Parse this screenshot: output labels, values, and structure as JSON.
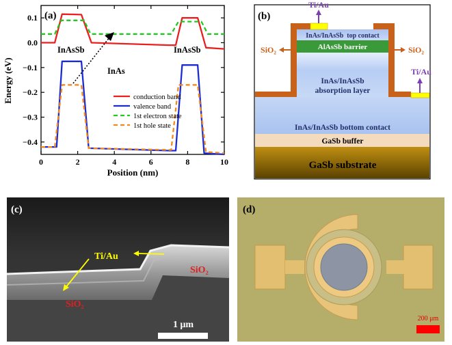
{
  "panel_a": {
    "label": "(a)",
    "text_inassb_left": "InAsSb",
    "text_inassb_right": "InAsSb",
    "text_inas": "InAs",
    "legend": [
      "conduction band",
      "valence band",
      "1st electron state",
      "1st hole state"
    ],
    "colors": {
      "cb": "#e8201e",
      "vb": "#1c2bd4",
      "e1": "#22c722",
      "h1": "#f08a1e"
    }
  },
  "panel_b": {
    "label": "(b)",
    "top_contact_metal": "Ti/Au",
    "side_contact_metal": "Ti/Au",
    "sio2_left": "SiO₂",
    "sio2_right": "SiO₂",
    "layers": {
      "top_contact": "InAs/InAsSb  top contact",
      "barrier": "AlAsSb barrier",
      "absorption_1": "InAs/InAsSb",
      "absorption_2": "absorption layer",
      "bottom_contact": "InAs/InAsSb bottom contact",
      "buffer": "GaSb buffer",
      "substrate": "GaSb substrate"
    }
  },
  "panel_c": {
    "label": "(c)",
    "tiau": "Ti/Au",
    "sio2_right": "SiO₂",
    "sio2_left": "SiO₂",
    "scale": "1 μm"
  },
  "panel_d": {
    "label": "(d)",
    "scale": "200 μm"
  },
  "chart_data": {
    "type": "line",
    "title": "",
    "xlabel": "Position (nm)",
    "ylabel": "Energy (eV)",
    "xlim": [
      0,
      10
    ],
    "ylim": [
      -0.45,
      0.15
    ],
    "xticks": [
      0,
      2,
      4,
      6,
      8,
      10
    ],
    "yticks": [
      0.1,
      0.0,
      -0.1,
      -0.2,
      -0.3,
      -0.4
    ],
    "ytick_labels": [
      "0.1",
      "0.0",
      "−0.1",
      "−0.2",
      "−0.3",
      "−0.4"
    ],
    "legend_position": "center-right",
    "series": [
      {
        "name": "conduction band",
        "style": "solid",
        "x": [
          0,
          0.75,
          1.15,
          2.2,
          2.75,
          7.0,
          7.35,
          7.7,
          8.55,
          9.0,
          10
        ],
        "y": [
          0.0,
          0.0,
          0.115,
          0.113,
          0.0,
          -0.01,
          -0.01,
          0.1,
          0.1,
          -0.02,
          -0.025
        ]
      },
      {
        "name": "valence band",
        "style": "solid",
        "x": [
          0,
          0.6,
          0.85,
          1.15,
          2.2,
          2.6,
          7.0,
          7.35,
          7.7,
          8.55,
          8.9,
          10
        ],
        "y": [
          -0.42,
          -0.42,
          -0.42,
          -0.075,
          -0.075,
          -0.425,
          -0.435,
          -0.435,
          -0.09,
          -0.09,
          -0.445,
          -0.45
        ]
      },
      {
        "name": "1st electron state",
        "style": "dashed",
        "x": [
          0,
          0.75,
          1.1,
          2.35,
          2.7,
          7.1,
          7.5,
          8.75,
          9.1,
          10
        ],
        "y": [
          0.035,
          0.035,
          0.09,
          0.09,
          0.035,
          0.035,
          0.085,
          0.085,
          0.035,
          0.035
        ]
      },
      {
        "name": "1st hole state",
        "style": "dashed",
        "x": [
          0,
          0.75,
          1.15,
          2.2,
          2.6,
          7.1,
          7.5,
          8.55,
          9.0,
          10
        ],
        "y": [
          -0.42,
          -0.42,
          -0.17,
          -0.17,
          -0.425,
          -0.432,
          -0.17,
          -0.17,
          -0.44,
          -0.445
        ]
      }
    ],
    "annotations": [
      "InAsSb",
      "InAsSb",
      "InAs"
    ]
  }
}
